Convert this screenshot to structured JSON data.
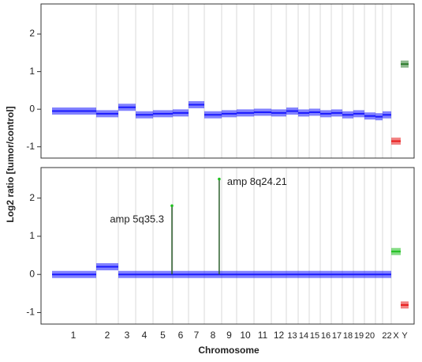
{
  "chart_data": {
    "type": "segment",
    "ylabel": "Log2 ratio [tumor/control]",
    "xlabel": "Chromosome",
    "categories": [
      "1",
      "2",
      "3",
      "4",
      "5",
      "6",
      "7",
      "8",
      "9",
      "10",
      "11",
      "12",
      "13",
      "14",
      "15",
      "16",
      "17",
      "18",
      "19",
      "20",
      null,
      "22",
      "X",
      "Y"
    ],
    "ylim": [
      -1.3,
      2.8
    ],
    "yticks": [
      -1,
      0,
      1,
      2
    ],
    "panels": [
      {
        "values": [
          -0.05,
          -0.12,
          0.05,
          -0.15,
          -0.12,
          -0.1,
          0.12,
          -0.15,
          -0.12,
          -0.1,
          -0.08,
          -0.1,
          -0.05,
          -0.1,
          -0.08,
          -0.12,
          -0.1,
          -0.15,
          -0.12,
          -0.18,
          -0.2,
          -0.15,
          -0.85,
          1.2
        ],
        "colors": [
          "#1a1aff",
          "#1a1aff",
          "#1a1aff",
          "#1a1aff",
          "#1a1aff",
          "#1a1aff",
          "#1a1aff",
          "#1a1aff",
          "#1a1aff",
          "#1a1aff",
          "#1a1aff",
          "#1a1aff",
          "#1a1aff",
          "#1a1aff",
          "#1a1aff",
          "#1a1aff",
          "#1a1aff",
          "#1a1aff",
          "#1a1aff",
          "#1a1aff",
          "#1a1aff",
          "#1a1aff",
          "#e81c1c",
          "#2e7d2e"
        ],
        "annotations": []
      },
      {
        "values": [
          0.0,
          0.2,
          0.0,
          0.0,
          0.0,
          0.0,
          0.0,
          0.0,
          0.0,
          0.0,
          0.0,
          0.0,
          0.0,
          0.0,
          0.0,
          0.0,
          0.0,
          0.0,
          0.0,
          0.0,
          0.0,
          0.0,
          0.6,
          -0.8
        ],
        "colors": [
          "#1a1aff",
          "#1a1aff",
          "#1a1aff",
          "#1a1aff",
          "#1a1aff",
          "#1a1aff",
          "#1a1aff",
          "#1a1aff",
          "#1a1aff",
          "#1a1aff",
          "#1a1aff",
          "#1a1aff",
          "#1a1aff",
          "#1a1aff",
          "#1a1aff",
          "#1a1aff",
          "#1a1aff",
          "#1a1aff",
          "#1a1aff",
          "#1a1aff",
          "#1a1aff",
          "#1a1aff",
          "#1fbf1f",
          "#e81c1c"
        ],
        "annotations": [
          {
            "text": "amp 5q35.3",
            "category": "5",
            "value": 1.8
          },
          {
            "text": "amp 8q24.21",
            "category": "8",
            "value": 2.5
          }
        ]
      }
    ]
  }
}
